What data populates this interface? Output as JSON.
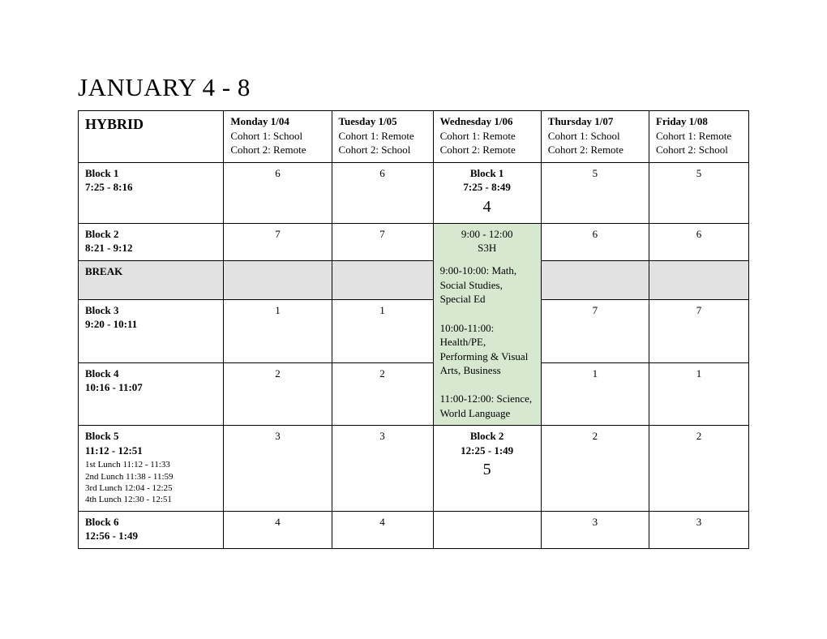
{
  "title": "JANUARY 4 - 8",
  "table_label": "HYBRID",
  "days": {
    "mon": {
      "name": "Monday 1/04",
      "cohort1": "Cohort 1: School",
      "cohort2": "Cohort 2: Remote"
    },
    "tue": {
      "name": "Tuesday 1/05",
      "cohort1": "Cohort 1: Remote",
      "cohort2": "Cohort 2: School"
    },
    "wed": {
      "name": "Wednesday 1/06",
      "cohort1": "Cohort 1: Remote",
      "cohort2": "Cohort 2: Remote"
    },
    "thu": {
      "name": "Thursday 1/07",
      "cohort1": "Cohort 1: School",
      "cohort2": "Cohort 2: Remote"
    },
    "fri": {
      "name": "Friday 1/08",
      "cohort1": "Cohort 1: Remote",
      "cohort2": "Cohort 2: School"
    }
  },
  "rows": {
    "block1": {
      "label": "Block 1",
      "time": "7:25 - 8:16",
      "mon": "6",
      "tue": "6",
      "thu": "5",
      "fri": "5"
    },
    "block2": {
      "label": "Block 2",
      "time": "8:21 - 9:12",
      "mon": "7",
      "tue": "7",
      "thu": "6",
      "fri": "6"
    },
    "break": {
      "label": "BREAK"
    },
    "block3": {
      "label": "Block 3",
      "time": "9:20 - 10:11",
      "mon": "1",
      "tue": "1",
      "thu": "7",
      "fri": "7"
    },
    "block4": {
      "label": "Block 4",
      "time": "10:16 - 11:07",
      "mon": "2",
      "tue": "2",
      "thu": "1",
      "fri": "1"
    },
    "block5": {
      "label": "Block 5",
      "time": "11:12 - 12:51",
      "mon": "3",
      "tue": "3",
      "thu": "2",
      "fri": "2",
      "lunches": [
        "1st Lunch 11:12 - 11:33",
        "2nd Lunch 11:38 - 11:59",
        "3rd Lunch 12:04 - 12:25",
        "4th Lunch 12:30 - 12:51"
      ]
    },
    "block6": {
      "label": "Block 6",
      "time": "12:56 - 1:49",
      "mon": "4",
      "tue": "4",
      "thu": "3",
      "fri": "3"
    }
  },
  "wednesday": {
    "top": {
      "label": "Block 1",
      "time": "7:25 - 8:49",
      "num": "4"
    },
    "s3h": {
      "time": "9:00 - 12:00",
      "label": "S3H",
      "slot1": "9:00-10:00: Math, Social Studies, Special Ed",
      "slot2": "10:00-11:00: Health/PE, Performing & Visual Arts, Business",
      "slot3": "11:00-12:00: Science, World Language"
    },
    "bottom": {
      "label": "Block 2",
      "time": "12:25 - 1:49",
      "num": "5"
    }
  },
  "colors": {
    "break_bg": "#e2e2e2",
    "s3h_bg": "#d7e8d1",
    "border": "#000000",
    "background": "#ffffff"
  },
  "typography": {
    "title_fontsize": 31,
    "body_fontsize": 13,
    "num_fontsize": 20,
    "font_family": "Georgia"
  }
}
